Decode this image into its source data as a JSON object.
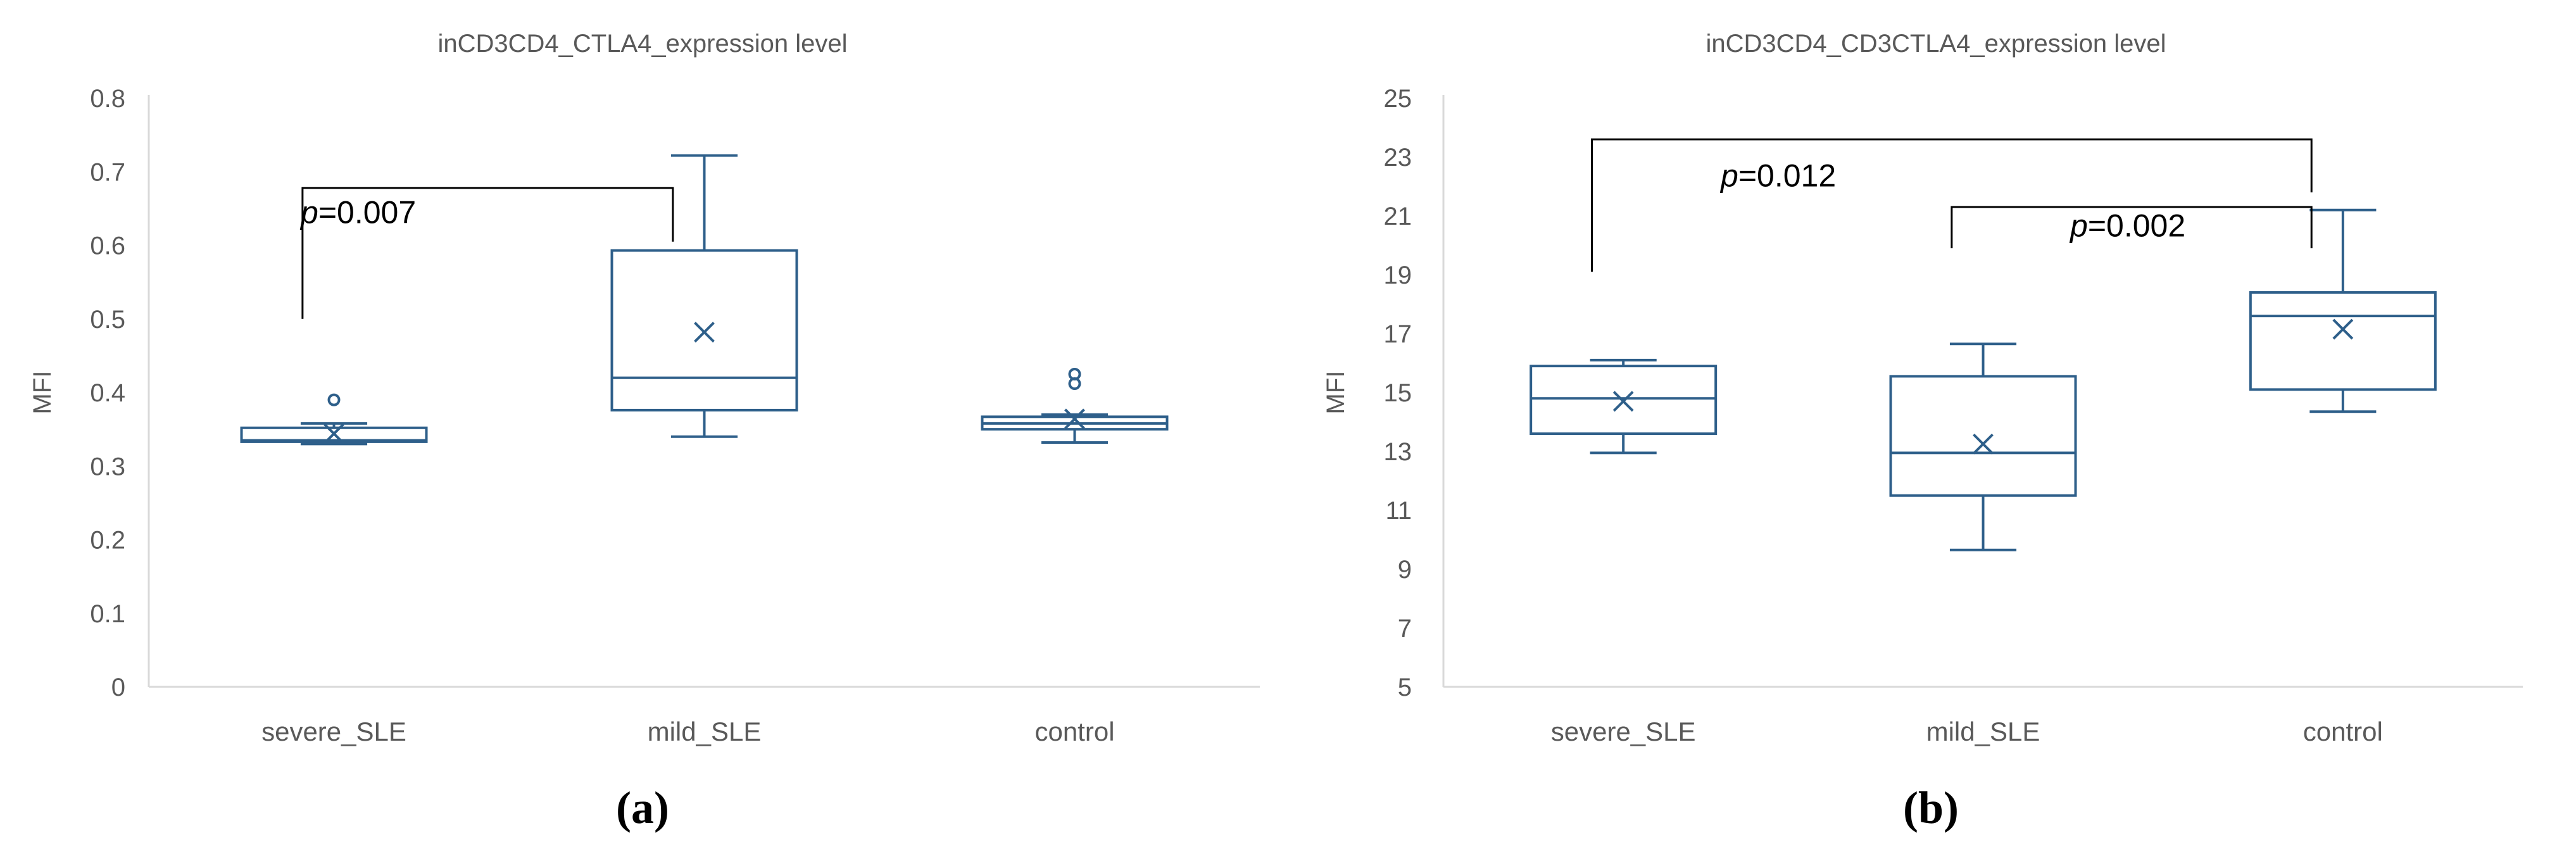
{
  "chart_data": [
    {
      "type": "box",
      "title": "inCD3CD4_CTLA4_expression level",
      "ylabel": "MFI",
      "ylim": [
        0,
        0.8
      ],
      "yticks": [
        "0",
        "0.1",
        "0.2",
        "0.3",
        "0.4",
        "0.5",
        "0.6",
        "0.7",
        "0.8"
      ],
      "categories": [
        "severe_SLE",
        "mild_SLE",
        "control"
      ],
      "boxes": [
        {
          "name": "severe_SLE",
          "min": 0.33,
          "q1": 0.333,
          "median": 0.335,
          "q3": 0.352,
          "max": 0.358,
          "mean": 0.344,
          "outliers": [
            0.39
          ]
        },
        {
          "name": "mild_SLE",
          "min": 0.34,
          "q1": 0.376,
          "median": 0.42,
          "q3": 0.593,
          "max": 0.722,
          "mean": 0.482,
          "outliers": []
        },
        {
          "name": "control",
          "min": 0.332,
          "q1": 0.35,
          "median": 0.358,
          "q3": 0.367,
          "max": 0.37,
          "mean": 0.364,
          "outliers": [
            0.412,
            0.425
          ]
        }
      ],
      "annotations": [
        {
          "text_italic": "p",
          "text": "=0.007",
          "from": "severe_SLE",
          "to": "mild_SLE",
          "bracket_y": 0.678,
          "left_end": 0.5,
          "right_end": 0.605,
          "label_y": 0.63
        }
      ],
      "panel_label": "(a)"
    },
    {
      "type": "box",
      "title": "inCD3CD4_CD3CTLA4_expression level",
      "ylabel": "MFI",
      "ylim": [
        5,
        25
      ],
      "yticks": [
        "5",
        "7",
        "9",
        "11",
        "13",
        "15",
        "17",
        "19",
        "21",
        "23",
        "25"
      ],
      "categories": [
        "severe_SLE",
        "mild_SLE",
        "control"
      ],
      "boxes": [
        {
          "name": "severe_SLE",
          "min": 12.95,
          "q1": 13.6,
          "median": 14.8,
          "q3": 15.9,
          "max": 16.1,
          "mean": 14.7,
          "outliers": []
        },
        {
          "name": "mild_SLE",
          "min": 9.65,
          "q1": 11.5,
          "median": 12.95,
          "q3": 15.55,
          "max": 16.65,
          "mean": 13.25,
          "outliers": []
        },
        {
          "name": "control",
          "min": 14.35,
          "q1": 15.1,
          "median": 17.6,
          "q3": 18.4,
          "max": 21.2,
          "mean": 17.15,
          "outliers": []
        }
      ],
      "annotations": [
        {
          "text_italic": "p",
          "text": "=0.012",
          "from": "severe_SLE",
          "to": "control",
          "bracket_y": 23.6,
          "left_end": 19.1,
          "right_end": 21.8,
          "label_y": 22.0
        },
        {
          "text_italic": "p",
          "text": "=0.002",
          "from": "mild_SLE",
          "to": "control",
          "bracket_y": 21.3,
          "left_end": 19.9,
          "right_end": 19.9,
          "label_y": 20.3
        }
      ],
      "panel_label": "(b)"
    }
  ],
  "colors": {
    "box": "#2e5f8a",
    "axis": "#d9d9d9",
    "text": "#595959",
    "bracket": "#000000"
  }
}
